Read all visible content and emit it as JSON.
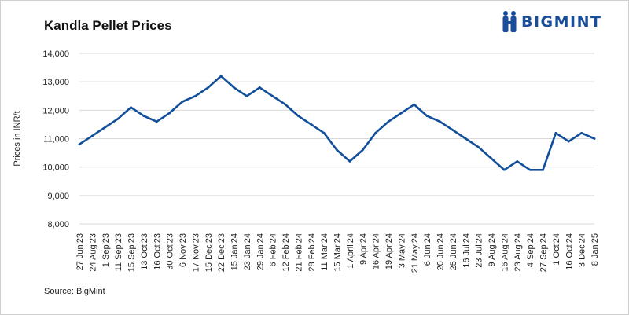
{
  "brand": {
    "name": "BIGMINT",
    "color": "#1a4e9a"
  },
  "source_note": "Source: BigMint",
  "colors": {
    "line": "#114f9b",
    "grid": "#d9d9d9"
  },
  "chart_data": {
    "type": "line",
    "title": "Kandla Pellet Prices",
    "xlabel": "",
    "ylabel": "Prices in INR/t",
    "ylim": [
      8000,
      14000
    ],
    "yticks": [
      8000,
      9000,
      10000,
      11000,
      12000,
      13000,
      14000
    ],
    "ytick_labels": [
      "8,000",
      "9,000",
      "10,000",
      "11,000",
      "12,000",
      "13,000",
      "14,000"
    ],
    "grid": true,
    "legend": "none",
    "categories": [
      "27 Jun'23",
      "24 Aug'23",
      "1 Sep'23",
      "11 Sep'23",
      "15 Sep'23",
      "13 Oct'23",
      "16 Oct'23",
      "30 Oct'23",
      "6 Nov'23",
      "17 Nov'23",
      "15 Dec'23",
      "22 Dec'23",
      "15 Jan'24",
      "23 Jan'24",
      "29 Jan'24",
      "6 Feb'24",
      "12 Feb'24",
      "21 Feb'24",
      "28 Feb'24",
      "11 Mar'24",
      "15 Mar'24",
      "1 April'24",
      "9 Apr'24",
      "16 Apr'24",
      "19 Apr'24",
      "3 May'24",
      "21 May'24",
      "6 Jun'24",
      "20 Jun'24",
      "25 Jun'24",
      "16 Jul'24",
      "23 Jul'24",
      "9 Aug'24",
      "16 Aug'24",
      "23 Aug'24",
      "4 Sep'24",
      "27 Sep'24",
      "1 Oct'24",
      "16 Oct'24",
      "3 Dec'24",
      "8 Jan'25"
    ],
    "series": [
      {
        "values": [
          10800,
          11100,
          11400,
          11700,
          12100,
          11800,
          11600,
          11900,
          12300,
          12500,
          12800,
          13200,
          12800,
          12500,
          12800,
          12500,
          12200,
          11800,
          11500,
          11200,
          10600,
          10200,
          10600,
          11200,
          11600,
          11900,
          12200,
          11800,
          11600,
          11300,
          11000,
          10700,
          10300,
          9900,
          10200,
          9900,
          9900,
          11200,
          10900,
          11200,
          11000
        ]
      }
    ]
  }
}
